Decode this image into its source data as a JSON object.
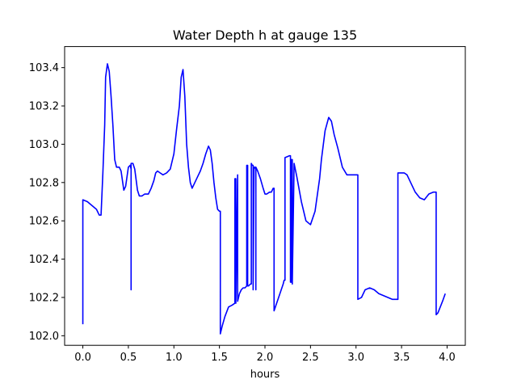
{
  "chart_data": {
    "type": "line",
    "title": "Water Depth h at gauge 135",
    "xlabel": "hours",
    "ylabel": "",
    "xlim": [
      -0.2,
      4.2
    ],
    "ylim": [
      101.95,
      103.51
    ],
    "xticks": [
      0.0,
      0.5,
      1.0,
      1.5,
      2.0,
      2.5,
      3.0,
      3.5,
      4.0
    ],
    "xtick_labels": [
      "0.0",
      "0.5",
      "1.0",
      "1.5",
      "2.0",
      "2.5",
      "3.0",
      "3.5",
      "4.0"
    ],
    "yticks": [
      102.0,
      102.2,
      102.4,
      102.6,
      102.8,
      103.0,
      103.2,
      103.4
    ],
    "ytick_labels": [
      "102.0",
      "102.2",
      "102.4",
      "102.6",
      "102.8",
      "103.0",
      "103.2",
      "103.4"
    ],
    "grid": false,
    "series": [
      {
        "color": "#0000ff",
        "x": [
          0.0,
          0.0,
          0.05,
          0.1,
          0.15,
          0.18,
          0.2,
          0.22,
          0.24,
          0.25,
          0.27,
          0.29,
          0.31,
          0.33,
          0.35,
          0.37,
          0.4,
          0.42,
          0.45,
          0.47,
          0.5,
          0.52,
          0.53,
          0.53,
          0.53,
          0.55,
          0.57,
          0.6,
          0.62,
          0.65,
          0.68,
          0.72,
          0.75,
          0.78,
          0.8,
          0.82,
          0.85,
          0.88,
          0.92,
          0.96,
          1.0,
          1.03,
          1.06,
          1.08,
          1.1,
          1.12,
          1.14,
          1.16,
          1.18,
          1.2,
          1.23,
          1.26,
          1.29,
          1.32,
          1.35,
          1.38,
          1.4,
          1.42,
          1.44,
          1.46,
          1.48,
          1.5,
          1.51,
          1.51,
          1.53,
          1.56,
          1.6,
          1.64,
          1.67,
          1.67,
          1.68,
          1.68,
          1.7,
          1.7,
          1.71,
          1.72,
          1.74,
          1.76,
          1.78,
          1.8,
          1.8,
          1.81,
          1.81,
          1.82,
          1.84,
          1.85,
          1.85,
          1.86,
          1.87,
          1.87,
          1.88,
          1.89,
          1.9,
          1.9,
          1.9,
          1.92,
          1.95,
          1.98,
          2.0,
          2.02,
          2.05,
          2.07,
          2.09,
          2.1,
          2.1,
          2.15,
          2.2,
          2.21,
          2.22,
          2.22,
          2.27,
          2.28,
          2.28,
          2.29,
          2.29,
          2.3,
          2.3,
          2.32,
          2.35,
          2.4,
          2.45,
          2.5,
          2.55,
          2.6,
          2.62,
          2.66,
          2.7,
          2.73,
          2.76,
          2.8,
          2.85,
          2.9,
          2.95,
          3.0,
          3.02,
          3.02,
          3.06,
          3.1,
          3.15,
          3.2,
          3.25,
          3.3,
          3.35,
          3.4,
          3.45,
          3.46,
          3.46,
          3.5,
          3.53,
          3.56,
          3.6,
          3.65,
          3.7,
          3.75,
          3.8,
          3.85,
          3.88,
          3.88,
          3.9,
          3.95,
          3.98
        ],
        "y": [
          102.06,
          102.71,
          102.7,
          102.68,
          102.66,
          102.63,
          102.63,
          102.85,
          103.1,
          103.35,
          103.42,
          103.38,
          103.25,
          103.1,
          102.92,
          102.88,
          102.88,
          102.86,
          102.76,
          102.78,
          102.88,
          102.89,
          102.87,
          102.24,
          102.9,
          102.9,
          102.87,
          102.76,
          102.73,
          102.73,
          102.74,
          102.74,
          102.77,
          102.81,
          102.85,
          102.86,
          102.85,
          102.84,
          102.85,
          102.87,
          102.95,
          103.08,
          103.2,
          103.35,
          103.39,
          103.25,
          103.0,
          102.88,
          102.8,
          102.77,
          102.8,
          102.83,
          102.86,
          102.9,
          102.95,
          102.99,
          102.97,
          102.9,
          102.8,
          102.72,
          102.66,
          102.65,
          102.65,
          102.01,
          102.05,
          102.1,
          102.15,
          102.16,
          102.17,
          102.82,
          102.82,
          102.17,
          102.84,
          102.18,
          102.2,
          102.22,
          102.24,
          102.25,
          102.25,
          102.26,
          102.89,
          102.89,
          102.26,
          102.26,
          102.27,
          102.27,
          102.9,
          102.89,
          102.89,
          102.24,
          102.88,
          102.88,
          102.87,
          102.24,
          102.88,
          102.86,
          102.82,
          102.77,
          102.74,
          102.74,
          102.75,
          102.75,
          102.77,
          102.77,
          102.13,
          102.2,
          102.27,
          102.29,
          102.29,
          102.93,
          102.94,
          102.94,
          102.28,
          102.28,
          102.92,
          102.92,
          102.27,
          102.9,
          102.83,
          102.7,
          102.6,
          102.58,
          102.65,
          102.82,
          102.92,
          103.07,
          103.14,
          103.12,
          103.05,
          102.98,
          102.88,
          102.84,
          102.84,
          102.84,
          102.84,
          102.19,
          102.2,
          102.24,
          102.25,
          102.24,
          102.22,
          102.21,
          102.2,
          102.19,
          102.19,
          102.19,
          102.85,
          102.85,
          102.85,
          102.84,
          102.8,
          102.75,
          102.72,
          102.71,
          102.74,
          102.75,
          102.75,
          102.11,
          102.12,
          102.18,
          102.22
        ]
      }
    ]
  }
}
